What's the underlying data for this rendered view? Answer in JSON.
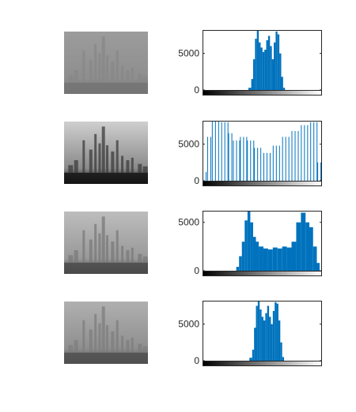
{
  "figure": {
    "background": "#ffffff",
    "bar_color": "#0072bd",
    "axis_color": "#262626"
  },
  "chart_data": [
    {
      "type": "bar",
      "panel": "histogram",
      "image": "Shanghai skyline, original low-contrast grayscale",
      "intensity_range": [
        0,
        255
      ],
      "ylim": [
        0,
        8200
      ],
      "yticks": [
        0,
        5000
      ],
      "ytick_labels": [
        "0",
        "5000"
      ],
      "grid": false,
      "legend": "none",
      "pattern": "comb",
      "bins": [
        {
          "from": 0,
          "to": 98,
          "value": 0
        },
        {
          "from": 98,
          "to": 104,
          "value": 300
        },
        {
          "from": 104,
          "to": 108,
          "value": 1500
        },
        {
          "from": 108,
          "to": 112,
          "value": 4200
        },
        {
          "from": 112,
          "to": 116,
          "value": 7000
        },
        {
          "from": 116,
          "to": 120,
          "value": 8200
        },
        {
          "from": 120,
          "to": 124,
          "value": 6500
        },
        {
          "from": 124,
          "to": 128,
          "value": 5800
        },
        {
          "from": 128,
          "to": 132,
          "value": 5200
        },
        {
          "from": 132,
          "to": 136,
          "value": 5500
        },
        {
          "from": 136,
          "to": 140,
          "value": 6800
        },
        {
          "from": 140,
          "to": 144,
          "value": 7400
        },
        {
          "from": 144,
          "to": 148,
          "value": 6000
        },
        {
          "from": 148,
          "to": 152,
          "value": 4200
        },
        {
          "from": 152,
          "to": 156,
          "value": 6500
        },
        {
          "from": 156,
          "to": 160,
          "value": 8000
        },
        {
          "from": 160,
          "to": 164,
          "value": 7600
        },
        {
          "from": 164,
          "to": 168,
          "value": 5000
        },
        {
          "from": 168,
          "to": 172,
          "value": 1800
        },
        {
          "from": 172,
          "to": 176,
          "value": 300
        },
        {
          "from": 176,
          "to": 255,
          "value": 0
        }
      ]
    },
    {
      "type": "bar",
      "panel": "histogram",
      "image": "Shanghai skyline, contrast stretched",
      "intensity_range": [
        0,
        255
      ],
      "ylim": [
        0,
        8200
      ],
      "yticks": [
        0,
        5000
      ],
      "ytick_labels": [
        "0",
        "5000"
      ],
      "grid": false,
      "legend": "none",
      "pattern": "sparse",
      "bins": [
        {
          "from": 0,
          "to": 10,
          "value": 1200
        },
        {
          "from": 10,
          "to": 20,
          "value": 6000
        },
        {
          "from": 20,
          "to": 40,
          "value": 8200
        },
        {
          "from": 40,
          "to": 55,
          "value": 8000
        },
        {
          "from": 55,
          "to": 65,
          "value": 6500
        },
        {
          "from": 65,
          "to": 80,
          "value": 5500
        },
        {
          "from": 80,
          "to": 95,
          "value": 6000
        },
        {
          "from": 95,
          "to": 110,
          "value": 5500
        },
        {
          "from": 110,
          "to": 130,
          "value": 4500
        },
        {
          "from": 130,
          "to": 150,
          "value": 3800
        },
        {
          "from": 150,
          "to": 170,
          "value": 4800
        },
        {
          "from": 170,
          "to": 190,
          "value": 6000
        },
        {
          "from": 190,
          "to": 210,
          "value": 6800
        },
        {
          "from": 210,
          "to": 230,
          "value": 7600
        },
        {
          "from": 230,
          "to": 245,
          "value": 8000
        },
        {
          "from": 245,
          "to": 255,
          "value": 2500
        }
      ]
    },
    {
      "type": "bar",
      "panel": "histogram",
      "image": "Shanghai skyline, intermediate contrast",
      "intensity_range": [
        0,
        255
      ],
      "ylim": [
        0,
        6200
      ],
      "yticks": [
        0,
        5000
      ],
      "ytick_labels": [
        "0",
        "5000"
      ],
      "grid": false,
      "legend": "none",
      "pattern": "comb",
      "bins": [
        {
          "from": 0,
          "to": 72,
          "value": 0
        },
        {
          "from": 72,
          "to": 78,
          "value": 400
        },
        {
          "from": 78,
          "to": 84,
          "value": 1500
        },
        {
          "from": 84,
          "to": 90,
          "value": 3000
        },
        {
          "from": 90,
          "to": 96,
          "value": 5200
        },
        {
          "from": 96,
          "to": 102,
          "value": 6200
        },
        {
          "from": 102,
          "to": 108,
          "value": 5000
        },
        {
          "from": 108,
          "to": 114,
          "value": 3500
        },
        {
          "from": 114,
          "to": 120,
          "value": 3000
        },
        {
          "from": 120,
          "to": 130,
          "value": 2500
        },
        {
          "from": 130,
          "to": 140,
          "value": 2300
        },
        {
          "from": 140,
          "to": 150,
          "value": 2200
        },
        {
          "from": 150,
          "to": 160,
          "value": 2400
        },
        {
          "from": 160,
          "to": 170,
          "value": 2300
        },
        {
          "from": 170,
          "to": 180,
          "value": 2500
        },
        {
          "from": 180,
          "to": 190,
          "value": 2400
        },
        {
          "from": 190,
          "to": 200,
          "value": 3000
        },
        {
          "from": 200,
          "to": 210,
          "value": 5000
        },
        {
          "from": 210,
          "to": 220,
          "value": 6000
        },
        {
          "from": 220,
          "to": 228,
          "value": 5000
        },
        {
          "from": 228,
          "to": 236,
          "value": 4500
        },
        {
          "from": 236,
          "to": 244,
          "value": 2500
        },
        {
          "from": 244,
          "to": 250,
          "value": 800
        },
        {
          "from": 250,
          "to": 255,
          "value": 0
        }
      ]
    },
    {
      "type": "bar",
      "panel": "histogram",
      "image": "Shanghai skyline, slightly enhanced",
      "intensity_range": [
        0,
        255
      ],
      "ylim": [
        0,
        8200
      ],
      "yticks": [
        0,
        5000
      ],
      "ytick_labels": [
        "0",
        "5000"
      ],
      "grid": false,
      "legend": "none",
      "pattern": "comb",
      "bins": [
        {
          "from": 0,
          "to": 100,
          "value": 0
        },
        {
          "from": 100,
          "to": 106,
          "value": 400
        },
        {
          "from": 106,
          "to": 110,
          "value": 1500
        },
        {
          "from": 110,
          "to": 114,
          "value": 4500
        },
        {
          "from": 114,
          "to": 118,
          "value": 7500
        },
        {
          "from": 118,
          "to": 122,
          "value": 8200
        },
        {
          "from": 122,
          "to": 126,
          "value": 7000
        },
        {
          "from": 126,
          "to": 130,
          "value": 6000
        },
        {
          "from": 130,
          "to": 134,
          "value": 5500
        },
        {
          "from": 134,
          "to": 138,
          "value": 6500
        },
        {
          "from": 138,
          "to": 142,
          "value": 7500
        },
        {
          "from": 142,
          "to": 146,
          "value": 6000
        },
        {
          "from": 146,
          "to": 150,
          "value": 5000
        },
        {
          "from": 150,
          "to": 154,
          "value": 6800
        },
        {
          "from": 154,
          "to": 158,
          "value": 8000
        },
        {
          "from": 158,
          "to": 162,
          "value": 7800
        },
        {
          "from": 162,
          "to": 166,
          "value": 5500
        },
        {
          "from": 166,
          "to": 170,
          "value": 2500
        },
        {
          "from": 170,
          "to": 174,
          "value": 500
        },
        {
          "from": 174,
          "to": 255,
          "value": 0
        }
      ]
    }
  ],
  "images": [
    {
      "subject": "city skyline (Shanghai)",
      "tone": "low-contrast hazy grayscale",
      "sky": "#9c9c9c",
      "mid": "#8e8e8e",
      "ground": "#747474",
      "building": "#878787"
    },
    {
      "subject": "city skyline (Shanghai)",
      "tone": "high-contrast grayscale",
      "sky": "#cfcfcf",
      "mid": "#8a8a8a",
      "ground": "#141414",
      "building": "#3c3c3c"
    },
    {
      "subject": "city skyline (Shanghai)",
      "tone": "medium-contrast grayscale",
      "sky": "#bdbdbd",
      "mid": "#999999",
      "ground": "#4a4a4a",
      "building": "#7a7a7a"
    },
    {
      "subject": "city skyline (Shanghai)",
      "tone": "mild-contrast grayscale",
      "sky": "#b0b0b0",
      "mid": "#8f8f8f",
      "ground": "#505050",
      "building": "#7e7e7e"
    }
  ]
}
